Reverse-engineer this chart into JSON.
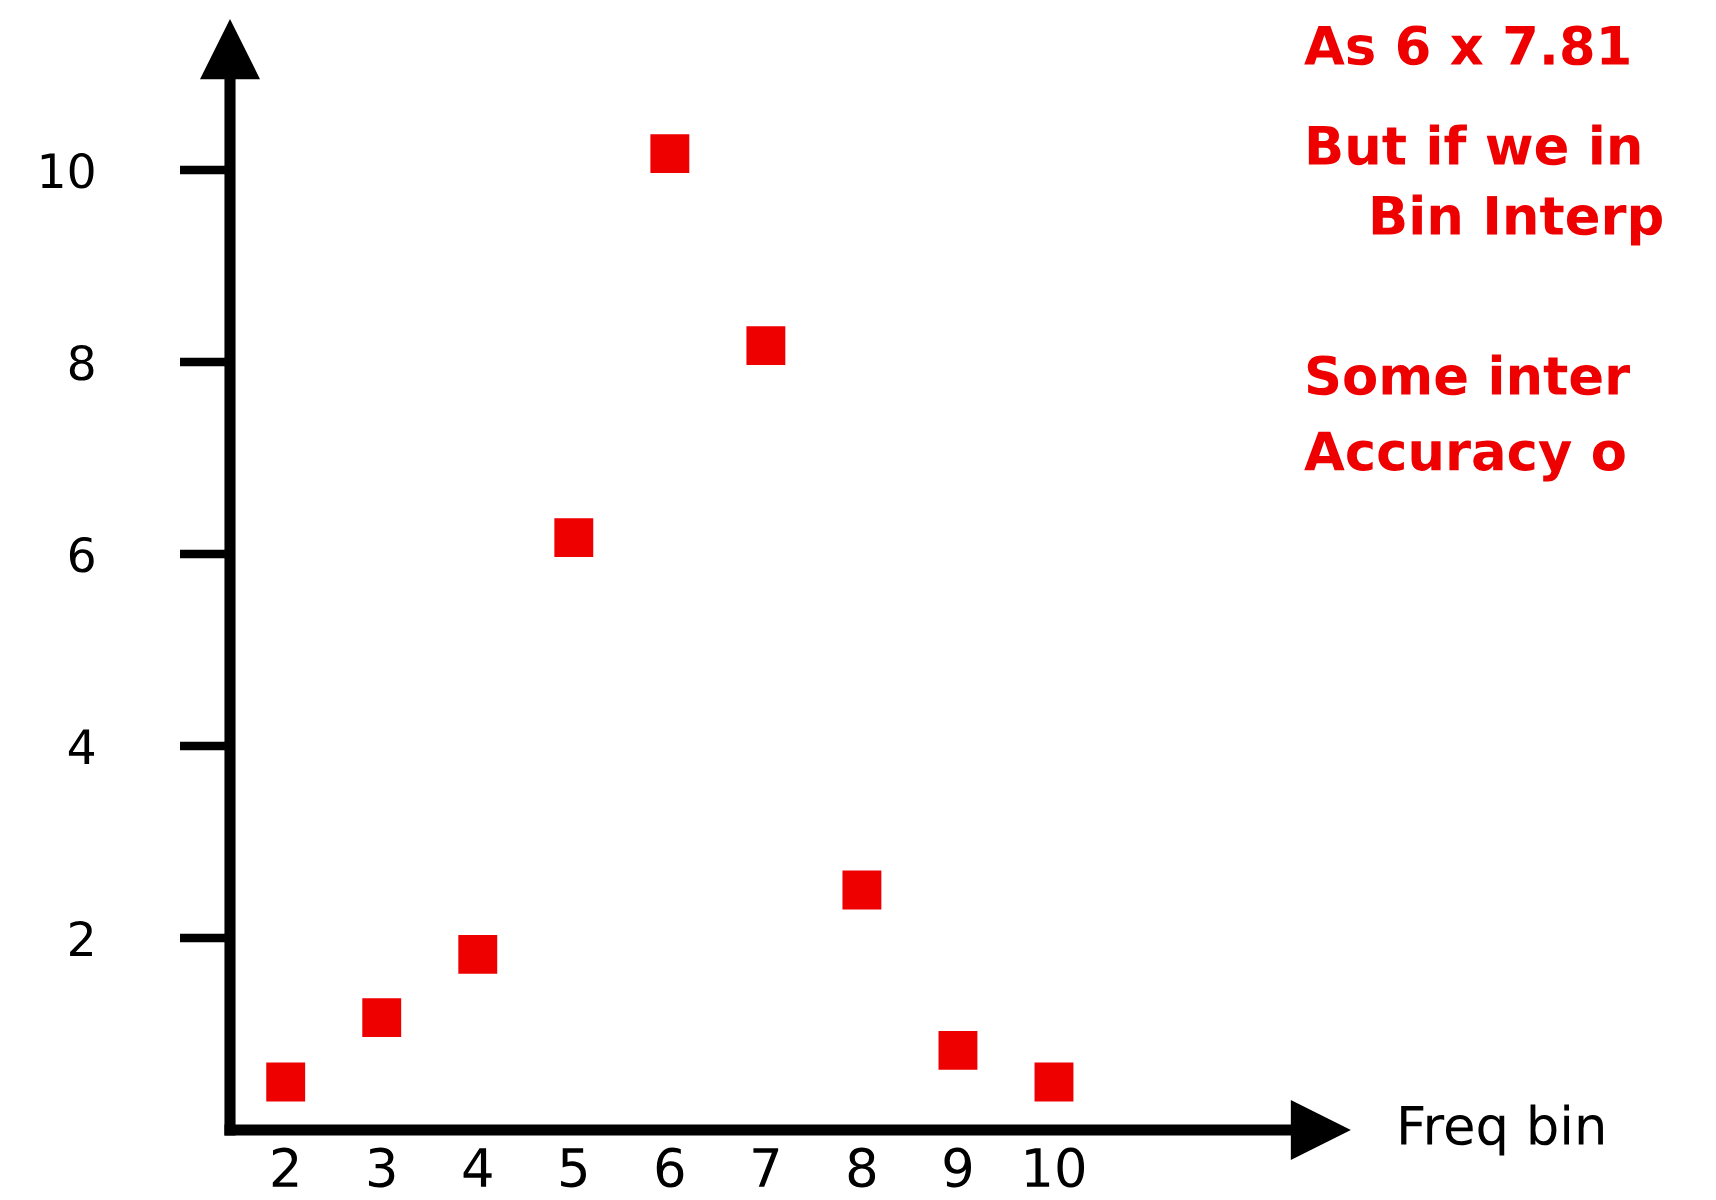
{
  "chart_data": {
    "type": "scatter",
    "categories": [
      "2",
      "3",
      "4",
      "5",
      "6",
      "7",
      "8",
      "9",
      "10"
    ],
    "series": [
      {
        "color": "#ee0000",
        "values": [
          0.5,
          1.17,
          1.83,
          6.17,
          10.17,
          8.17,
          2.5,
          0.83,
          0.5
        ]
      }
    ],
    "ylim": [
      0,
      11.25
    ],
    "yticks": [
      2,
      4,
      6,
      8,
      10
    ],
    "marker": "square",
    "grid": false,
    "legend": false,
    "annotations": [
      "As 6 x 7.81",
      "But if we in",
      "Bin Interp",
      "Some inter",
      "Accuracy o",
      "Freq bin"
    ]
  }
}
